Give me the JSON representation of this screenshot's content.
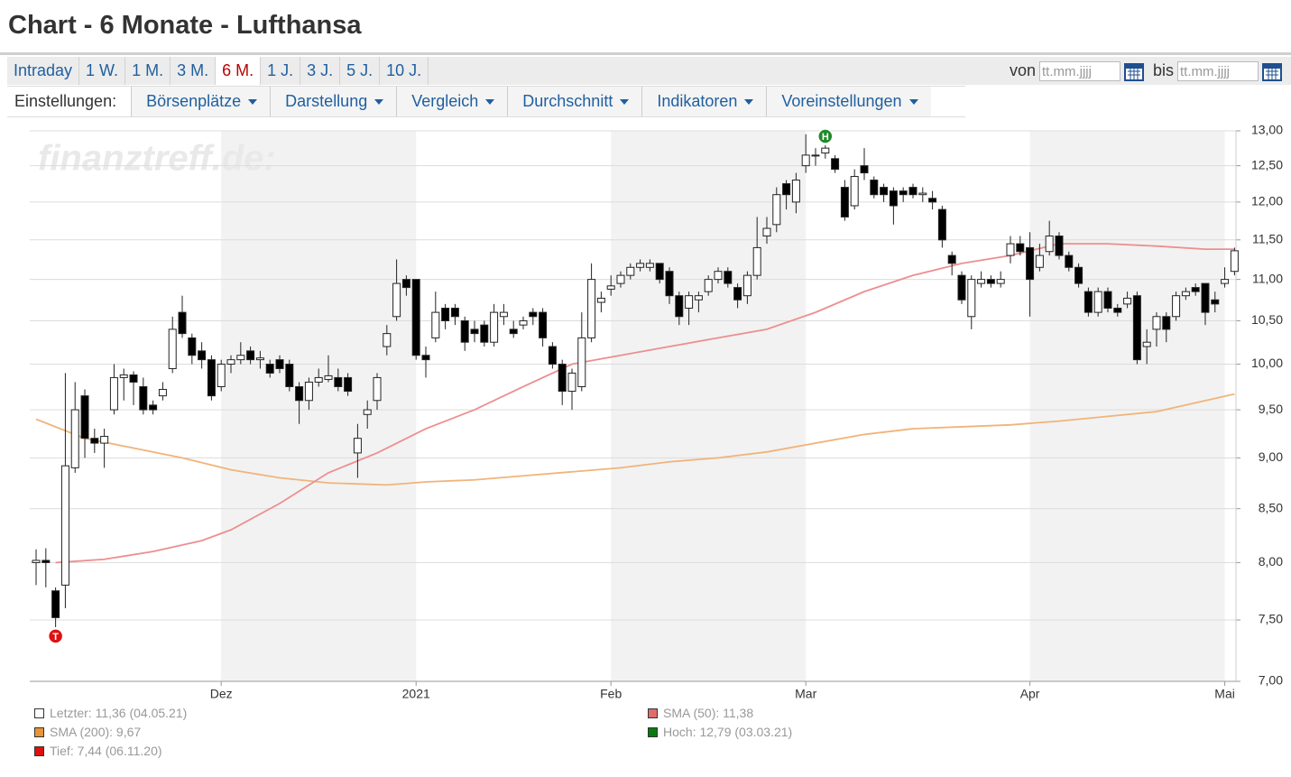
{
  "header": {
    "title": "Chart - 6 Monate - Lufthansa"
  },
  "tabs": {
    "items": [
      "Intraday",
      "1 W.",
      "1 M.",
      "3 M.",
      "6 M.",
      "1 J.",
      "3 J.",
      "5 J.",
      "10 J."
    ],
    "active": 4
  },
  "date_range": {
    "from_label": "von",
    "to_label": "bis",
    "placeholder": "tt.mm.jjjj"
  },
  "settings": {
    "label": "Einstellungen:",
    "menus": [
      "Börsenplätze",
      "Darstellung",
      "Vergleich",
      "Durchschnitt",
      "Indikatoren",
      "Voreinstellungen"
    ]
  },
  "watermark": "finanztreff.de:",
  "chart_data": {
    "type": "candlestick",
    "log_scale": true,
    "grid": true,
    "xlim": [
      -0.65,
      123.15
    ],
    "xticks": [
      {
        "value": 19,
        "label": "Dez"
      },
      {
        "value": 39,
        "label": "2021"
      },
      {
        "value": 59,
        "label": "Feb"
      },
      {
        "value": 79,
        "label": "Mar"
      },
      {
        "value": 102,
        "label": "Apr"
      },
      {
        "value": 122,
        "label": "Mai"
      }
    ],
    "ylim": [
      7,
      13
    ],
    "yticks": [
      {
        "value": 7,
        "label": "7,00"
      },
      {
        "value": 7.5,
        "label": "7,50"
      },
      {
        "value": 8,
        "label": "8,00"
      },
      {
        "value": 8.5,
        "label": "8,50"
      },
      {
        "value": 9,
        "label": "9,00"
      },
      {
        "value": 9.5,
        "label": "9,50"
      },
      {
        "value": 10,
        "label": "10,00"
      },
      {
        "value": 10.5,
        "label": "10,50"
      },
      {
        "value": 11,
        "label": "11,00"
      },
      {
        "value": 11.5,
        "label": "11,50"
      },
      {
        "value": 12,
        "label": "12,00"
      },
      {
        "value": 12.5,
        "label": "12,50"
      },
      {
        "value": 13,
        "label": "13,00"
      }
    ],
    "open": [
      8.0,
      8.02,
      7.75,
      7.8,
      8.9,
      9.65,
      9.2,
      9.15,
      9.5,
      9.85,
      9.88,
      9.75,
      9.55,
      9.65,
      9.95,
      10.6,
      10.3,
      10.15,
      10.05,
      9.75,
      10.0,
      10.05,
      10.15,
      10.05,
      10.0,
      10.05,
      10.0,
      9.75,
      9.6,
      9.8,
      9.83,
      9.85,
      9.85,
      9.05,
      9.45,
      9.6,
      10.2,
      10.55,
      11.0,
      11.0,
      10.1,
      10.3,
      10.65,
      10.65,
      10.5,
      10.4,
      10.45,
      10.25,
      10.55,
      10.4,
      10.45,
      10.6,
      10.6,
      10.2,
      10.0,
      9.7,
      9.75,
      10.3,
      10.72,
      10.88,
      10.95,
      11.05,
      11.15,
      11.15,
      11.2,
      11.1,
      10.8,
      10.65,
      10.75,
      10.85,
      11.0,
      11.1,
      10.9,
      10.8,
      11.05,
      11.55,
      11.7,
      12.25,
      12.0,
      12.5,
      12.65,
      12.68,
      12.6,
      12.2,
      11.95,
      12.5,
      12.3,
      12.2,
      12.15,
      12.15,
      12.2,
      12.1,
      12.05,
      11.9,
      11.3,
      11.05,
      10.55,
      10.95,
      11.0,
      10.95,
      11.3,
      11.45,
      11.4,
      11.15,
      11.35,
      11.55,
      11.3,
      11.15,
      10.85,
      10.6,
      10.85,
      10.65,
      10.7,
      10.8,
      10.2,
      10.4,
      10.55,
      10.55,
      10.8,
      10.9,
      10.95,
      10.75,
      10.95,
      11.1
    ],
    "high": [
      8.12,
      8.13,
      7.78,
      9.9,
      9.8,
      9.72,
      9.3,
      9.3,
      10.0,
      9.95,
      9.92,
      9.85,
      9.6,
      9.8,
      10.55,
      10.8,
      10.35,
      10.25,
      10.1,
      10.05,
      10.1,
      10.25,
      10.2,
      10.15,
      10.05,
      10.1,
      10.05,
      9.8,
      9.85,
      9.95,
      10.1,
      9.95,
      9.9,
      9.35,
      9.6,
      9.9,
      10.45,
      11.25,
      11.05,
      11.0,
      10.2,
      10.85,
      10.7,
      10.7,
      10.55,
      10.5,
      10.5,
      10.7,
      10.7,
      10.5,
      10.55,
      10.65,
      10.65,
      10.25,
      10.05,
      9.95,
      10.6,
      11.2,
      10.85,
      11.05,
      11.1,
      11.2,
      11.25,
      11.25,
      11.2,
      11.15,
      10.85,
      10.85,
      10.85,
      11.05,
      11.15,
      11.15,
      10.95,
      11.1,
      11.8,
      11.8,
      12.2,
      12.3,
      12.4,
      12.95,
      12.75,
      12.79,
      12.65,
      12.3,
      12.45,
      12.75,
      12.35,
      12.25,
      12.2,
      12.2,
      12.25,
      12.2,
      12.15,
      11.95,
      11.35,
      11.1,
      11.05,
      11.1,
      11.05,
      11.1,
      11.55,
      11.55,
      11.6,
      11.45,
      11.75,
      11.6,
      11.35,
      11.2,
      10.9,
      10.9,
      10.9,
      10.7,
      10.85,
      10.85,
      10.4,
      10.6,
      10.6,
      10.85,
      10.9,
      10.95,
      10.95,
      10.85,
      11.15,
      11.4
    ],
    "low": [
      7.8,
      7.78,
      7.44,
      7.6,
      8.85,
      9.0,
      9.05,
      8.9,
      9.45,
      9.6,
      9.55,
      9.45,
      9.45,
      9.6,
      9.9,
      10.3,
      10.0,
      9.95,
      9.6,
      9.7,
      9.9,
      10.0,
      10.0,
      9.95,
      9.85,
      9.9,
      9.7,
      9.35,
      9.5,
      9.75,
      9.8,
      9.7,
      9.65,
      8.8,
      9.3,
      9.5,
      10.1,
      10.5,
      10.8,
      10.05,
      9.85,
      10.25,
      10.4,
      10.45,
      10.15,
      10.25,
      10.2,
      10.2,
      10.45,
      10.3,
      10.4,
      10.45,
      10.2,
      9.95,
      9.55,
      9.5,
      9.7,
      10.25,
      10.6,
      10.8,
      10.9,
      11.0,
      11.1,
      11.1,
      10.95,
      10.7,
      10.45,
      10.45,
      10.6,
      10.8,
      10.95,
      10.9,
      10.65,
      10.7,
      11.0,
      11.45,
      11.6,
      11.9,
      11.85,
      12.4,
      12.5,
      12.6,
      12.4,
      11.75,
      11.9,
      12.3,
      12.05,
      12.0,
      11.7,
      12.0,
      12.05,
      12.0,
      11.9,
      11.4,
      11.05,
      10.7,
      10.4,
      10.9,
      10.9,
      10.9,
      11.2,
      11.3,
      10.55,
      11.1,
      11.3,
      11.25,
      11.1,
      10.9,
      10.55,
      10.55,
      10.6,
      10.55,
      10.65,
      10.0,
      10.0,
      10.2,
      10.25,
      10.5,
      10.75,
      10.8,
      10.45,
      10.6,
      10.9,
      11.05
    ],
    "close": [
      8.02,
      8.0,
      7.52,
      8.92,
      9.5,
      9.2,
      9.15,
      9.22,
      9.85,
      9.88,
      9.8,
      9.5,
      9.5,
      9.72,
      10.4,
      10.35,
      10.1,
      10.05,
      9.65,
      10.0,
      10.05,
      10.1,
      10.05,
      10.07,
      9.9,
      9.95,
      9.75,
      9.6,
      9.8,
      9.85,
      9.87,
      9.75,
      9.7,
      9.2,
      9.5,
      9.85,
      10.35,
      10.95,
      10.9,
      10.1,
      10.05,
      10.6,
      10.5,
      10.55,
      10.25,
      10.35,
      10.25,
      10.6,
      10.6,
      10.35,
      10.5,
      10.55,
      10.3,
      10.0,
      9.7,
      9.9,
      10.3,
      11.0,
      10.77,
      10.92,
      11.05,
      11.15,
      11.2,
      11.2,
      11.0,
      10.8,
      10.55,
      10.8,
      10.8,
      11.0,
      11.1,
      10.95,
      10.75,
      11.05,
      11.4,
      11.65,
      12.1,
      12.1,
      12.3,
      12.65,
      12.65,
      12.75,
      12.45,
      11.8,
      12.35,
      12.4,
      12.1,
      12.1,
      11.95,
      12.1,
      12.1,
      12.12,
      12.0,
      11.5,
      11.2,
      10.75,
      11.0,
      11.0,
      10.95,
      11.0,
      11.45,
      11.35,
      11.0,
      11.3,
      11.55,
      11.3,
      11.15,
      10.95,
      10.6,
      10.85,
      10.65,
      10.6,
      10.77,
      10.05,
      10.25,
      10.55,
      10.4,
      10.8,
      10.85,
      10.85,
      10.6,
      10.7,
      11.0,
      11.36
    ],
    "lines": [
      {
        "color": "#f0b47a",
        "x": [
          0,
          5,
          10,
          15,
          20,
          25,
          30,
          36,
          40,
          45,
          50,
          55,
          60,
          65,
          70,
          75,
          80,
          85,
          90,
          95,
          100,
          105,
          110,
          115,
          123
        ],
        "values": [
          9.4,
          9.2,
          9.1,
          9.0,
          8.88,
          8.8,
          8.75,
          8.73,
          8.76,
          8.78,
          8.82,
          8.86,
          8.9,
          8.96,
          9.0,
          9.06,
          9.15,
          9.24,
          9.3,
          9.32,
          9.34,
          9.38,
          9.43,
          9.48,
          9.67
        ]
      },
      {
        "color": "#ec8f8f",
        "x": [
          2,
          7,
          12,
          17,
          20,
          25,
          30,
          35,
          40,
          45,
          50,
          55,
          60,
          65,
          70,
          75,
          80,
          85,
          90,
          95,
          100,
          105,
          110,
          115,
          120,
          123
        ],
        "values": [
          8.0,
          8.03,
          8.1,
          8.2,
          8.3,
          8.55,
          8.85,
          9.05,
          9.3,
          9.5,
          9.75,
          10.0,
          10.1,
          10.2,
          10.3,
          10.4,
          10.6,
          10.85,
          11.05,
          11.2,
          11.3,
          11.45,
          11.45,
          11.42,
          11.38,
          11.38
        ]
      }
    ],
    "markers": [
      {
        "label": "H",
        "index": 81,
        "color": "#1e8a2a",
        "side": "high"
      },
      {
        "label": "T",
        "index": 2,
        "color": "#e01010",
        "side": "low"
      }
    ],
    "legend": [
      {
        "color": "#ffffff",
        "text": "Letzter: 11,36 (04.05.21)"
      },
      {
        "color": "#e06c6c",
        "text": "SMA (50): 11,38"
      },
      {
        "color": "#e8943a",
        "text": "SMA (200): 9,67"
      },
      {
        "color": "#0a7a10",
        "text": "Hoch: 12,79 (03.03.21)"
      },
      {
        "color": "#e01010",
        "text": "Tief: 7,44 (06.11.20)"
      }
    ]
  }
}
